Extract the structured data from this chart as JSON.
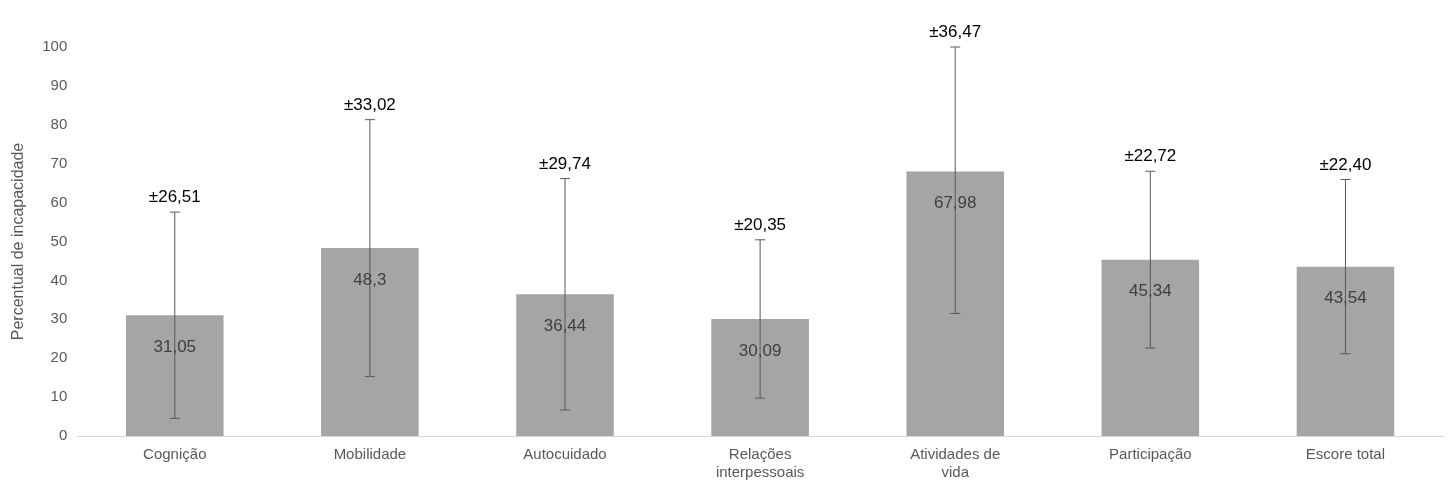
{
  "chart_data": {
    "type": "bar",
    "ylabel": "Percentual de incapacidade",
    "categories": [
      "Cognição",
      "Mobilidade",
      "Autocuidado",
      "Relações interpessoais",
      "Atividades de vida",
      "Participação",
      "Escore total"
    ],
    "values": [
      31.05,
      48.3,
      36.44,
      30.09,
      67.98,
      45.34,
      43.54
    ],
    "value_labels": [
      "31,05",
      "48,3",
      "36,44",
      "30,09",
      "67,98",
      "45,34",
      "43,54"
    ],
    "errors": [
      [
        4.54,
        57.56
      ],
      [
        15.28,
        81.32
      ],
      [
        6.7,
        66.18
      ],
      [
        9.74,
        50.44
      ],
      [
        31.51,
        100
      ],
      [
        22.62,
        68.06
      ],
      [
        21.14,
        65.94
      ]
    ],
    "color": "#a5a5a5",
    "ylim": [
      0,
      100
    ],
    "yticks": [
      0,
      10,
      20,
      30,
      40,
      50,
      60,
      70,
      80,
      90,
      100
    ],
    "annotations": [
      {
        "text": "±26,51",
        "x": "Cognição",
        "y": 57.56
      },
      {
        "text": "±33,02",
        "x": "Mobilidade",
        "y": 81.32
      },
      {
        "text": "±29,74",
        "x": "Autocuidado",
        "y": 66.18
      },
      {
        "text": "±20,35",
        "x": "Relações interpessoais",
        "y": 50.44
      },
      {
        "text": "±36,47",
        "x": "Atividades de vida",
        "y": 100
      },
      {
        "text": "±22,72",
        "x": "Participação",
        "y": 68.06
      },
      {
        "text": "±22,40",
        "x": "Escore total",
        "y": 65.94
      }
    ],
    "grid": false,
    "legend": false
  }
}
